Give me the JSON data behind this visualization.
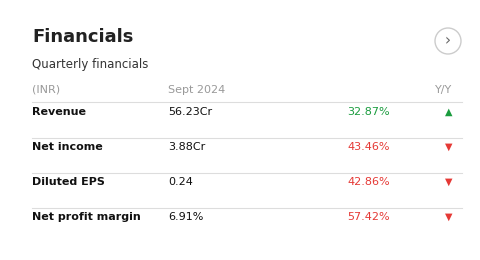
{
  "title": "Financials",
  "subtitle": "Quarterly financials",
  "header_col1": "(INR)",
  "header_col2": "Sept 2024",
  "header_col3": "Y/Y",
  "rows": [
    {
      "label": "Revenue",
      "value": "56.23Cr",
      "yy": "32.87%",
      "direction": "up",
      "yy_color": "#1a9c3e"
    },
    {
      "label": "Net income",
      "value": "3.88Cr",
      "yy": "43.46%",
      "direction": "down",
      "yy_color": "#e53935"
    },
    {
      "label": "Diluted EPS",
      "value": "0.24",
      "yy": "42.86%",
      "direction": "down",
      "yy_color": "#e53935"
    },
    {
      "label": "Net profit margin",
      "value": "6.91%",
      "yy": "57.42%",
      "direction": "down",
      "yy_color": "#e53935"
    }
  ],
  "bg_color": "#ffffff",
  "title_color": "#222222",
  "subtitle_color": "#333333",
  "header_color": "#999999",
  "label_color": "#111111",
  "value_color": "#111111",
  "line_color": "#dddddd",
  "arrow_circle_color": "#cccccc",
  "arrow_color": "#666666"
}
